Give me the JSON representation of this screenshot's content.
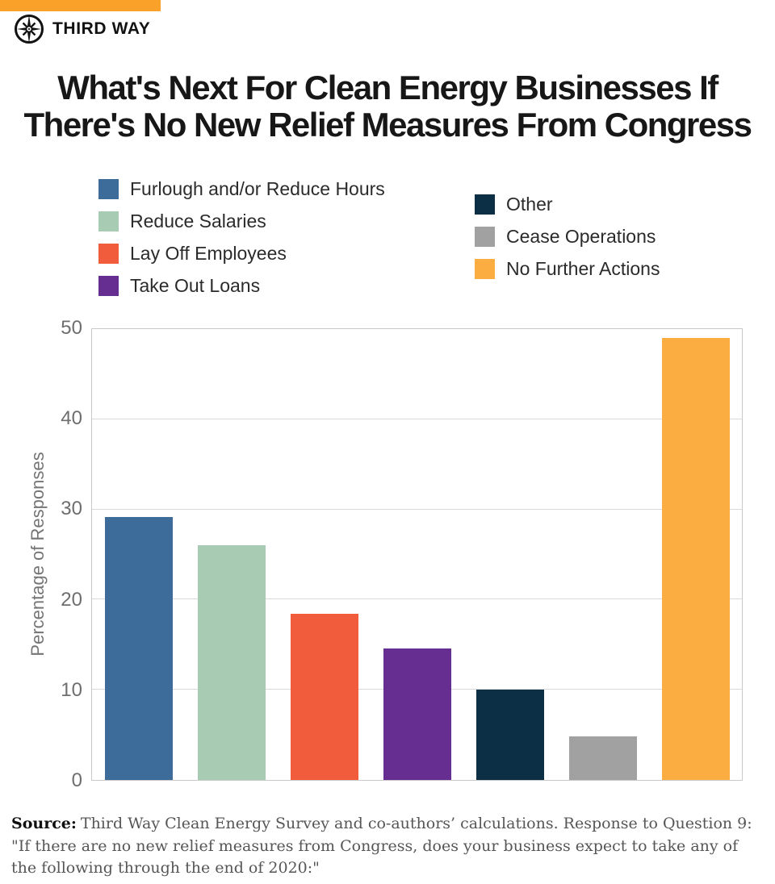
{
  "header": {
    "brand": "THIRD WAY"
  },
  "title": {
    "line1": "What's Next For Clean Energy Businesses If",
    "line2": "There's No New Relief Measures From Congress"
  },
  "legend": {
    "left": [
      {
        "label": "Furlough and/or Reduce Hours",
        "color": "#3D6C9B"
      },
      {
        "label": "Reduce Salaries",
        "color": "#A7CBB3"
      },
      {
        "label": "Lay Off Employees",
        "color": "#F15C3D"
      },
      {
        "label": "Take Out Loans",
        "color": "#662E91"
      }
    ],
    "right": [
      {
        "label": "Other",
        "color": "#0D2F45"
      },
      {
        "label": "Cease Operations",
        "color": "#A1A1A1"
      },
      {
        "label": "No Further Actions",
        "color": "#FBAD42"
      }
    ]
  },
  "chart_data": {
    "type": "bar",
    "title": "What's Next For Clean Energy Businesses If There's No New Relief Measures From Congress",
    "categories": [
      "Furlough and/or Reduce Hours",
      "Reduce Salaries",
      "Lay Off Employees",
      "Take Out Loans",
      "Other",
      "Cease Operations",
      "No Further Actions"
    ],
    "values": [
      29.2,
      26.0,
      18.4,
      14.6,
      10.0,
      4.8,
      49.0
    ],
    "colors": [
      "#3D6C9B",
      "#A7CBB3",
      "#F15C3D",
      "#662E91",
      "#0D2F45",
      "#A1A1A1",
      "#FBAD42"
    ],
    "xlabel": "",
    "ylabel": "Percentage of Responses",
    "ylim": [
      0,
      50
    ],
    "yticks": [
      0,
      10,
      20,
      30,
      40,
      50
    ],
    "grid": true,
    "legend_position": "top"
  },
  "source": {
    "label": "Source:",
    "text": "Third Way Clean Energy Survey and co-authors’ calculations. Response to Question 9: \"If there are no new relief measures from Congress, does your business expect to take any of the following through the end of 2020:\""
  },
  "brand_colors": {
    "accent_orange": "#F9A128",
    "grid_gray": "#D9D9D9",
    "axis_text_gray": "#6E6E6E"
  }
}
